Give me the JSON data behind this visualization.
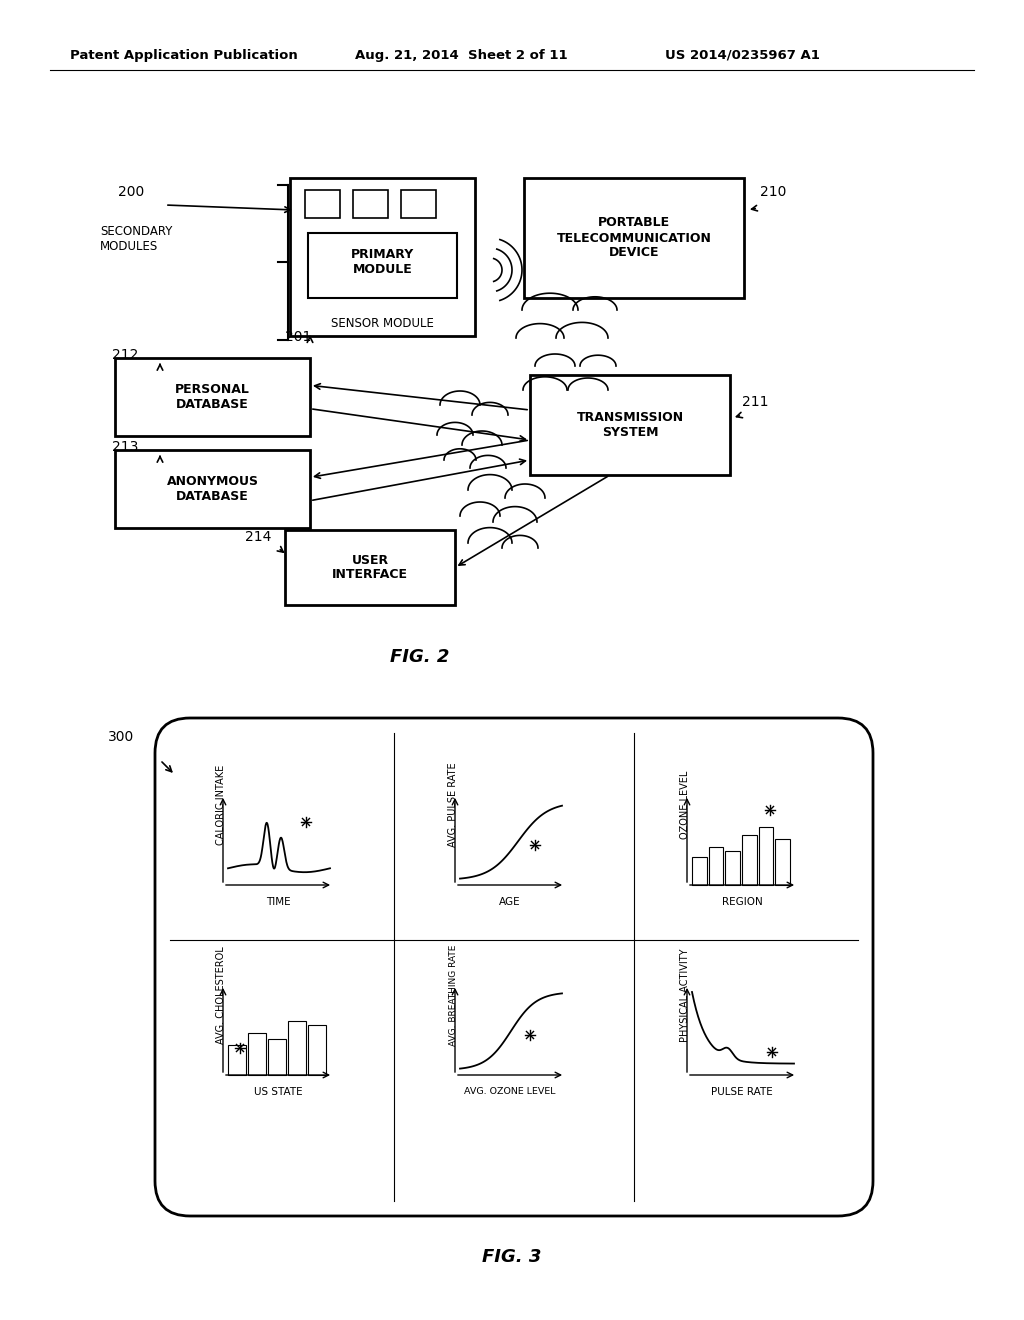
{
  "bg_color": "#ffffff",
  "header_left": "Patent Application Publication",
  "header_mid": "Aug. 21, 2014  Sheet 2 of 11",
  "header_right": "US 2014/0235967 A1",
  "fig2_label": "FIG. 2",
  "fig3_label": "FIG. 3",
  "fig2_ref": "200",
  "fig2_secondary_modules": "SECONDARY\nMODULES",
  "fig2_201": "201",
  "fig2_primary": "PRIMARY\nMODULE",
  "fig2_sensor": "SENSOR MODULE",
  "fig2_210": "210",
  "fig2_telecom": "PORTABLE\nTELECOMMUNICATION\nDEVICE",
  "fig2_212": "212",
  "fig2_personal": "PERSONAL\nDATABASE",
  "fig2_213": "213",
  "fig2_anonymous": "ANONYMOUS\nDATABASE",
  "fig2_211": "211",
  "fig2_transmission": "TRANSMISSION\nSYSTEM",
  "fig2_214": "214",
  "fig2_user": "USER\nINTERFACE",
  "fig3_ref": "300"
}
